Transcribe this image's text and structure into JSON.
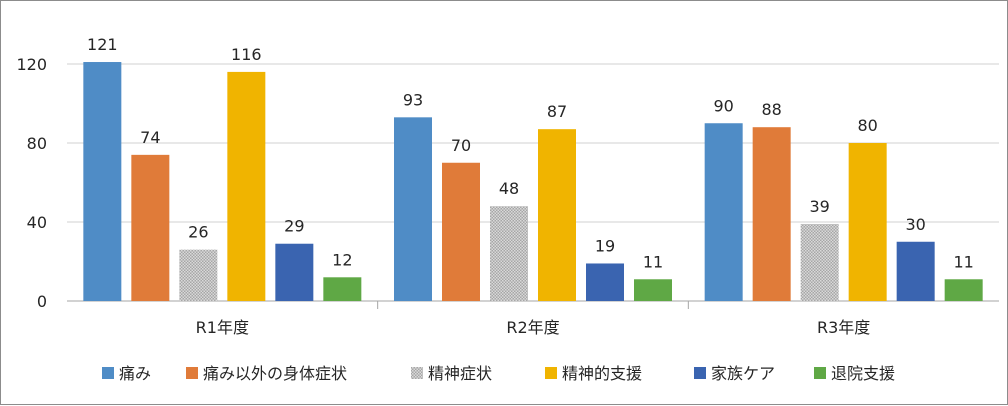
{
  "chart_data": {
    "type": "bar",
    "title": "",
    "xlabel": "",
    "ylabel": "",
    "ylim": [
      0,
      130
    ],
    "yticks": [
      0,
      40,
      80,
      120
    ],
    "grid": true,
    "legend_position": "bottom",
    "categories": [
      "R1年度",
      "R2年度",
      "R3年度"
    ],
    "series": [
      {
        "name": "痛み",
        "color": "#4f8cc6",
        "values": [
          121,
          93,
          90
        ]
      },
      {
        "name": "痛み以外の身体症状",
        "color": "#e07b39",
        "values": [
          74,
          70,
          88
        ]
      },
      {
        "name": "精神症状",
        "color": "#a6a6a6",
        "pattern": "dotted",
        "values": [
          26,
          48,
          39
        ]
      },
      {
        "name": "精神的支援",
        "color": "#f0b400",
        "values": [
          116,
          87,
          80
        ]
      },
      {
        "name": "家族ケア",
        "color": "#3a64b0",
        "values": [
          29,
          19,
          30
        ]
      },
      {
        "name": "退院支援",
        "color": "#5fa845",
        "values": [
          12,
          11,
          11
        ]
      }
    ]
  }
}
